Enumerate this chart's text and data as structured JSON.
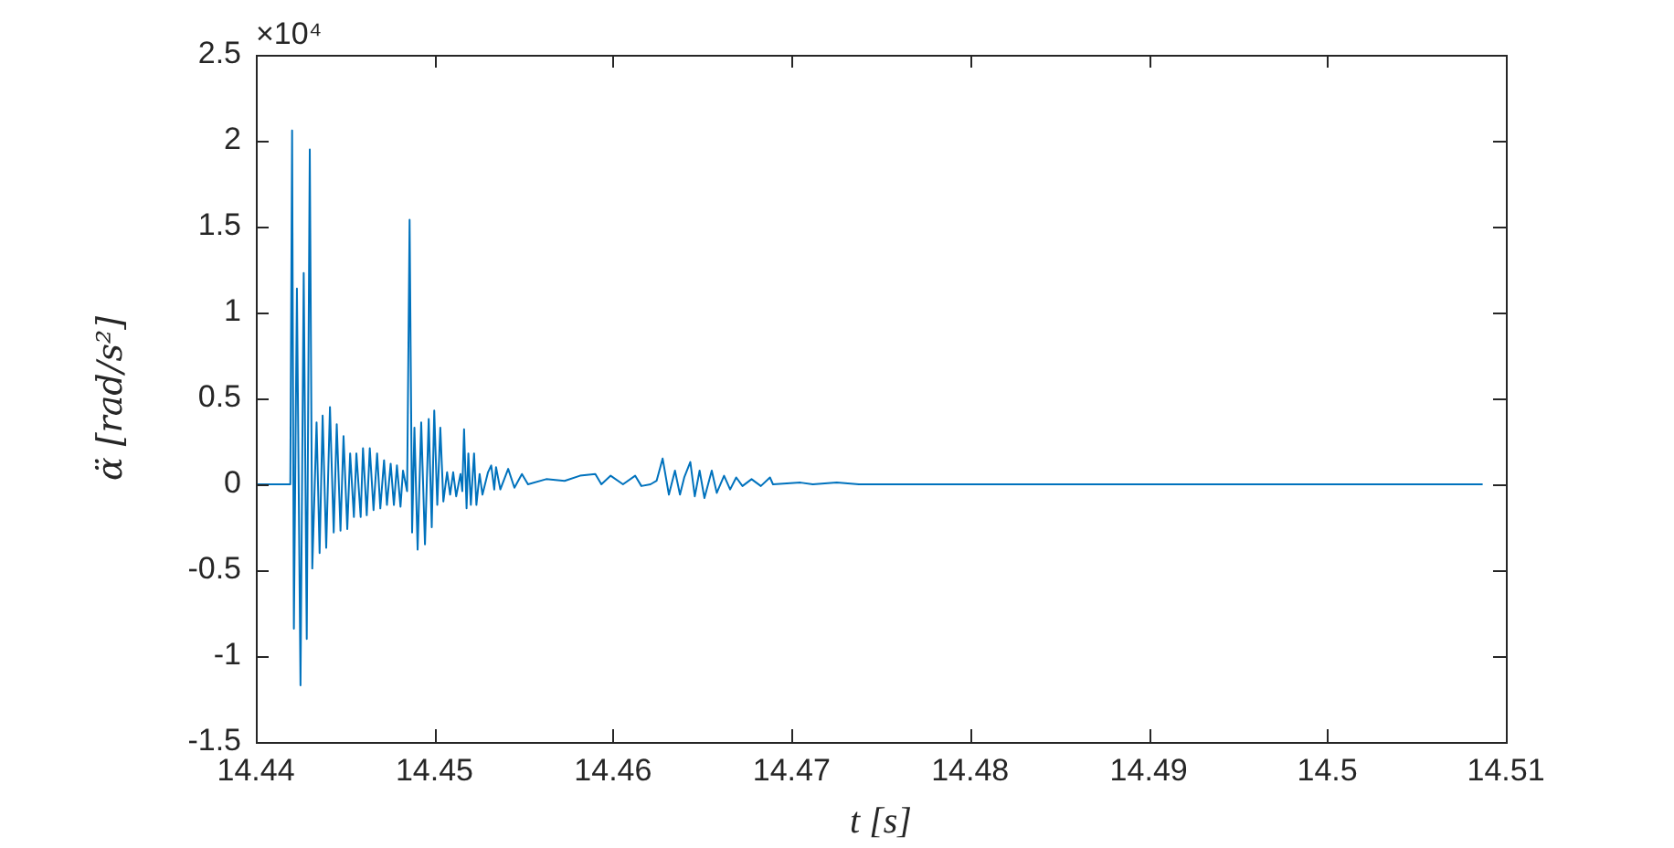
{
  "chart_data": {
    "type": "line",
    "xlabel": "t [s]",
    "ylabel": "α̈ [rad/s²]",
    "annotations": [
      "×10⁴"
    ],
    "xlim": [
      14.44,
      14.51
    ],
    "xticks": [
      14.44,
      14.45,
      14.46,
      14.47,
      14.48,
      14.49,
      14.5,
      14.51
    ],
    "ylim": [
      -1.5,
      2.5
    ],
    "yticks": [
      -1.5,
      -1,
      -0.5,
      0,
      0.5,
      1,
      1.5,
      2,
      2.5
    ],
    "series": [
      {
        "color": "#0072bd",
        "x": [
          14.44,
          14.44193,
          14.44203,
          14.44213,
          14.4423,
          14.4425,
          14.44268,
          14.44285,
          14.44302,
          14.44316,
          14.4434,
          14.44357,
          14.44374,
          14.44394,
          14.44415,
          14.44436,
          14.44453,
          14.44474,
          14.44491,
          14.44512,
          14.44528,
          14.44549,
          14.44563,
          14.44587,
          14.446,
          14.44621,
          14.44638,
          14.44659,
          14.44679,
          14.44697,
          14.44718,
          14.44734,
          14.44755,
          14.44773,
          14.4479,
          14.4481,
          14.44824,
          14.44847,
          14.44861,
          14.44875,
          14.44888,
          14.44906,
          14.44926,
          14.44947,
          14.44968,
          14.44985,
          14.44999,
          14.45016,
          14.45033,
          14.4505,
          14.45071,
          14.45088,
          14.45105,
          14.45122,
          14.45146,
          14.45156,
          14.45166,
          14.4518,
          14.4519,
          14.45204,
          14.45222,
          14.45235,
          14.45253,
          14.45269,
          14.453,
          14.45318,
          14.45335,
          14.45345,
          14.45369,
          14.45413,
          14.45448,
          14.4549,
          14.45524,
          14.45626,
          14.45729,
          14.45815,
          14.45901,
          14.45935,
          14.45987,
          14.46056,
          14.46124,
          14.46159,
          14.4621,
          14.46244,
          14.46278,
          14.46313,
          14.46347,
          14.46375,
          14.46399,
          14.46433,
          14.46458,
          14.46485,
          14.46512,
          14.46553,
          14.46581,
          14.46622,
          14.46656,
          14.4669,
          14.46725,
          14.46776,
          14.46828,
          14.46879,
          14.46896,
          14.4705,
          14.47119,
          14.47253,
          14.47377,
          14.5087
        ],
        "values": [
          0,
          0,
          2.06,
          -0.84,
          1.14,
          -1.17,
          1.23,
          -0.9,
          1.95,
          -0.49,
          0.36,
          -0.4,
          0.4,
          -0.37,
          0.45,
          -0.28,
          0.35,
          -0.27,
          0.28,
          -0.26,
          0.18,
          -0.19,
          0.18,
          -0.19,
          0.21,
          -0.18,
          0.21,
          -0.15,
          0.18,
          -0.14,
          0.14,
          -0.12,
          0.12,
          -0.12,
          0.11,
          -0.13,
          0.08,
          -0.04,
          1.54,
          -0.28,
          0.33,
          -0.38,
          0.36,
          -0.35,
          0.38,
          -0.25,
          0.43,
          -0.12,
          0.33,
          -0.1,
          0.07,
          -0.06,
          0.07,
          -0.07,
          0.06,
          -0.04,
          0.32,
          -0.14,
          0.18,
          -0.12,
          0.18,
          -0.12,
          0.06,
          -0.06,
          0.07,
          0.11,
          -0.03,
          0.1,
          -0.03,
          0.09,
          -0.02,
          0.06,
          0,
          0.03,
          0.02,
          0.05,
          0.06,
          0,
          0.05,
          0,
          0.05,
          -0.01,
          0,
          0.02,
          0.15,
          -0.06,
          0.08,
          -0.06,
          0.04,
          0.13,
          -0.07,
          0.08,
          -0.08,
          0.08,
          -0.05,
          0.05,
          -0.03,
          0.04,
          -0.01,
          0.03,
          -0.01,
          0.04,
          0,
          0.01,
          0,
          0.01,
          0,
          0
        ]
      }
    ]
  }
}
